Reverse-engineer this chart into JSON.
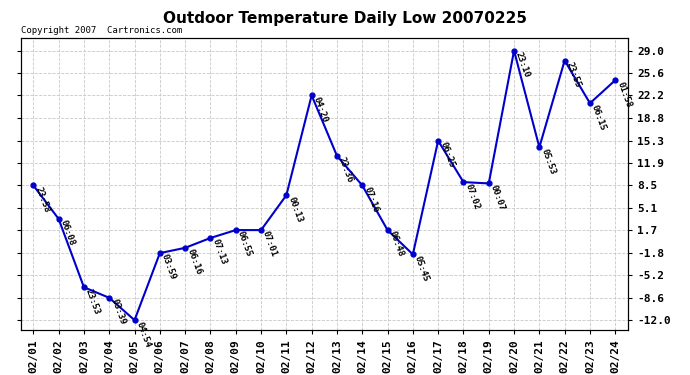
{
  "title": "Outdoor Temperature Daily Low 20070225",
  "copyright": "Copyright 2007  Cartronics.com",
  "dates": [
    "02/01",
    "02/02",
    "02/03",
    "02/04",
    "02/05",
    "02/06",
    "02/07",
    "02/08",
    "02/09",
    "02/10",
    "02/11",
    "02/12",
    "02/13",
    "02/14",
    "02/15",
    "02/16",
    "02/17",
    "02/18",
    "02/19",
    "02/20",
    "02/21",
    "02/22",
    "02/23",
    "02/24"
  ],
  "values": [
    8.5,
    3.4,
    -7.0,
    -8.6,
    -12.0,
    -1.8,
    -1.0,
    0.5,
    1.7,
    1.7,
    7.0,
    22.2,
    13.0,
    8.5,
    1.7,
    -2.0,
    15.3,
    9.0,
    8.8,
    29.0,
    14.3,
    27.5,
    21.0,
    24.5
  ],
  "labels": [
    "23:58",
    "06:08",
    "23:53",
    "03:39",
    "04:54",
    "03:59",
    "06:16",
    "07:13",
    "06:55",
    "07:01",
    "00:13",
    "04:20",
    "23:36",
    "07:16",
    "06:48",
    "05:45",
    "06:25",
    "07:02",
    "00:07",
    "23:10",
    "05:53",
    "23:55",
    "06:15",
    "01:58"
  ],
  "yticks": [
    29.0,
    25.6,
    22.2,
    18.8,
    15.3,
    11.9,
    8.5,
    5.1,
    1.7,
    -1.8,
    -5.2,
    -8.6,
    -12.0
  ],
  "line_color": "#0000cc",
  "marker_color": "#0000cc",
  "bg_color": "#ffffff",
  "grid_color": "#c8c8c8",
  "title_fontsize": 11,
  "label_fontsize": 6.5,
  "tick_fontsize": 8,
  "copyright_fontsize": 6.5,
  "ymin": -13.5,
  "ymax": 31.0
}
